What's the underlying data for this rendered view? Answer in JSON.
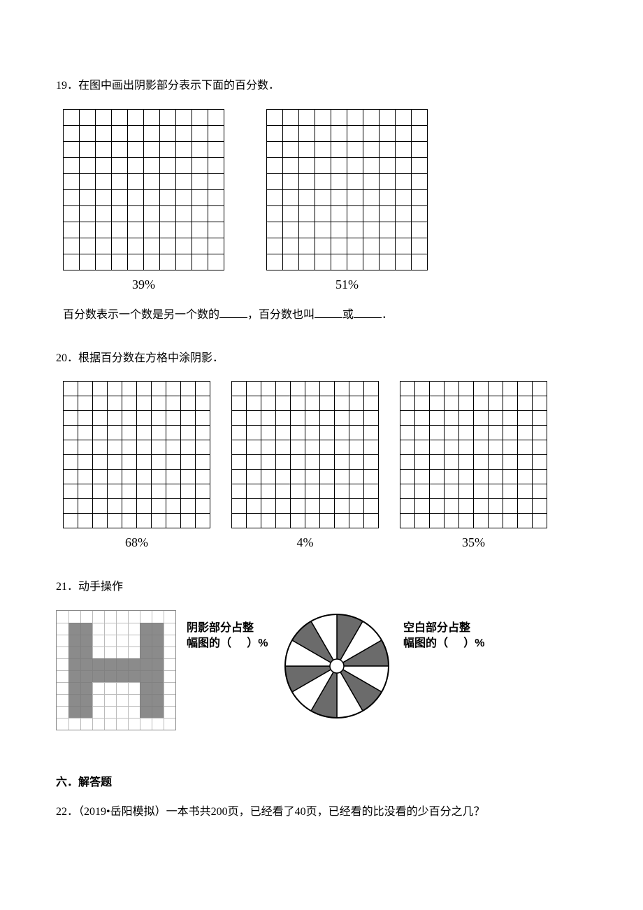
{
  "q19": {
    "number": "19．",
    "prompt": "在图中画出阴影部分表示下面的百分数．",
    "grids": [
      {
        "cols": 10,
        "rows": 10,
        "label": "39%"
      },
      {
        "cols": 10,
        "rows": 10,
        "label": "51%"
      }
    ],
    "fill_text_pre": "百分数表示一个数是另一个数的",
    "fill_text_mid1": "，百分数也叫",
    "fill_text_mid2": "或",
    "fill_text_end": "．"
  },
  "q20": {
    "number": "20．",
    "prompt": "根据百分数在方格中涂阴影．",
    "grids": [
      {
        "cols": 10,
        "rows": 10,
        "label": "68%"
      },
      {
        "cols": 10,
        "rows": 10,
        "label": "4%"
      },
      {
        "cols": 10,
        "rows": 10,
        "label": "35%"
      }
    ]
  },
  "q21": {
    "number": "21．",
    "prompt": "动手操作",
    "ann1_l1": "阴影部分占整",
    "ann1_l2_pre": "幅图的（",
    "ann1_l2_post": "）%",
    "ann2_l1": "空白部分占整",
    "ann2_l2_pre": "幅图的（",
    "ann2_l2_post": "）%",
    "h_grid": {
      "cols": 10,
      "rows": 10,
      "shaded_cells": [
        [
          1,
          1
        ],
        [
          2,
          1
        ],
        [
          1,
          2
        ],
        [
          2,
          2
        ],
        [
          1,
          3
        ],
        [
          2,
          3
        ],
        [
          7,
          1
        ],
        [
          8,
          1
        ],
        [
          7,
          2
        ],
        [
          8,
          2
        ],
        [
          7,
          3
        ],
        [
          8,
          3
        ],
        [
          1,
          4
        ],
        [
          2,
          4
        ],
        [
          3,
          4
        ],
        [
          4,
          4
        ],
        [
          5,
          4
        ],
        [
          6,
          4
        ],
        [
          7,
          4
        ],
        [
          8,
          4
        ],
        [
          1,
          5
        ],
        [
          2,
          5
        ],
        [
          3,
          5
        ],
        [
          4,
          5
        ],
        [
          5,
          5
        ],
        [
          6,
          5
        ],
        [
          7,
          5
        ],
        [
          8,
          5
        ],
        [
          1,
          6
        ],
        [
          2,
          6
        ],
        [
          1,
          7
        ],
        [
          2,
          7
        ],
        [
          1,
          8
        ],
        [
          2,
          8
        ],
        [
          7,
          6
        ],
        [
          8,
          6
        ],
        [
          7,
          7
        ],
        [
          8,
          7
        ],
        [
          7,
          8
        ],
        [
          8,
          8
        ]
      ]
    },
    "pie": {
      "sectors": 12,
      "shaded": [
        0,
        2,
        4,
        6,
        8,
        10
      ],
      "fill": "#6b6b6b",
      "stroke": "#000000"
    }
  },
  "section6": {
    "title": "六．解答题"
  },
  "q22": {
    "number": "22．",
    "source": "（2019•岳阳模拟）",
    "text": "一本书共200页，已经看了40页，已经看的比没看的少百分之几？"
  },
  "colors": {
    "text": "#000000",
    "grid_border": "#000000",
    "scan_line": "#bbbbbb",
    "shade": "#777777",
    "bg": "#ffffff"
  }
}
